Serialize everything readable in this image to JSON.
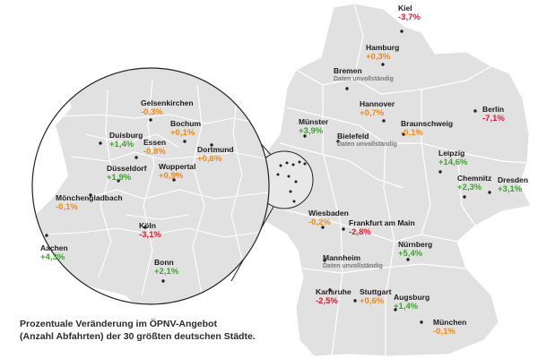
{
  "colors": {
    "positive": "#3ca32c",
    "negative": "#e5172f",
    "neutral": "#f08a13",
    "land": "#e1e1e1",
    "border": "#ffffff",
    "outline": "#222222"
  },
  "caption": {
    "line1": "Prozentuale Veränderung im ÖPNV-Angebot",
    "line2": "(Anzahl Abfahrten) der 30 größten deutschen Städte."
  },
  "cities": [
    {
      "id": "kiel",
      "name": "Kiel",
      "value": "-3,7%",
      "trend": "negative"
    },
    {
      "id": "hamburg",
      "name": "Hamburg",
      "value": "+0,3%",
      "trend": "neutral"
    },
    {
      "id": "bremen",
      "name": "Bremen",
      "note": "Daten unvollständig"
    },
    {
      "id": "hannover",
      "name": "Hannover",
      "value": "+0,7%",
      "trend": "neutral"
    },
    {
      "id": "berlin",
      "name": "Berlin",
      "value": "-7,1%",
      "trend": "negative"
    },
    {
      "id": "muenster",
      "name": "Münster",
      "value": "+3,9%",
      "trend": "positive"
    },
    {
      "id": "bielefeld",
      "name": "Bielefeld",
      "note": "Daten unvollständig"
    },
    {
      "id": "braunschweig",
      "name": "Braunschweig",
      "value": "-0,1%",
      "trend": "neutral"
    },
    {
      "id": "leipzig",
      "name": "Leipzig",
      "value": "+14,6%",
      "trend": "positive"
    },
    {
      "id": "chemnitz",
      "name": "Chemnitz",
      "value": "+2,3%",
      "trend": "positive"
    },
    {
      "id": "dresden",
      "name": "Dresden",
      "value": "+3,1%",
      "trend": "positive"
    },
    {
      "id": "wiesbaden",
      "name": "Wiesbaden",
      "value": "-0,2%",
      "trend": "neutral"
    },
    {
      "id": "frankfurt",
      "name": "Frankfurt am Main",
      "value": "-2,8%",
      "trend": "negative"
    },
    {
      "id": "nuernberg",
      "name": "Nürnberg",
      "value": "+5,4%",
      "trend": "positive"
    },
    {
      "id": "mannheim",
      "name": "Mannheim",
      "note": "Daten unvollständig"
    },
    {
      "id": "karlsruhe",
      "name": "Karlsruhe",
      "value": "-2,5%",
      "trend": "negative"
    },
    {
      "id": "stuttgart",
      "name": "Stuttgart",
      "value": "+0,6%",
      "trend": "neutral"
    },
    {
      "id": "augsburg",
      "name": "Augsburg",
      "value": "+1,4%",
      "trend": "positive"
    },
    {
      "id": "muenchen",
      "name": "München",
      "value": "-0,1%",
      "trend": "neutral"
    },
    {
      "id": "gelsenkirchen",
      "name": "Gelsenkirchen",
      "value": "-0,3%",
      "trend": "neutral"
    },
    {
      "id": "bochum",
      "name": "Bochum",
      "value": "+0,1%",
      "trend": "neutral"
    },
    {
      "id": "duisburg",
      "name": "Duisburg",
      "value": "+1,4%",
      "trend": "positive"
    },
    {
      "id": "essen",
      "name": "Essen",
      "value": "-0,8%",
      "trend": "neutral"
    },
    {
      "id": "dortmund",
      "name": "Dortmund",
      "value": "+0,6%",
      "trend": "neutral"
    },
    {
      "id": "duesseldorf",
      "name": "Düsseldorf",
      "value": "+1,9%",
      "trend": "positive"
    },
    {
      "id": "wuppertal",
      "name": "Wuppertal",
      "value": "+0,9%",
      "trend": "neutral"
    },
    {
      "id": "moenchengladbach",
      "name": "Mönchengladbach",
      "value": "-0,1%",
      "trend": "neutral"
    },
    {
      "id": "koeln",
      "name": "Köln",
      "value": "-3,1%",
      "trend": "negative"
    },
    {
      "id": "aachen",
      "name": "Aachen",
      "value": "+4,3%",
      "trend": "positive"
    },
    {
      "id": "bonn",
      "name": "Bonn",
      "value": "+2,1%",
      "trend": "positive"
    }
  ]
}
